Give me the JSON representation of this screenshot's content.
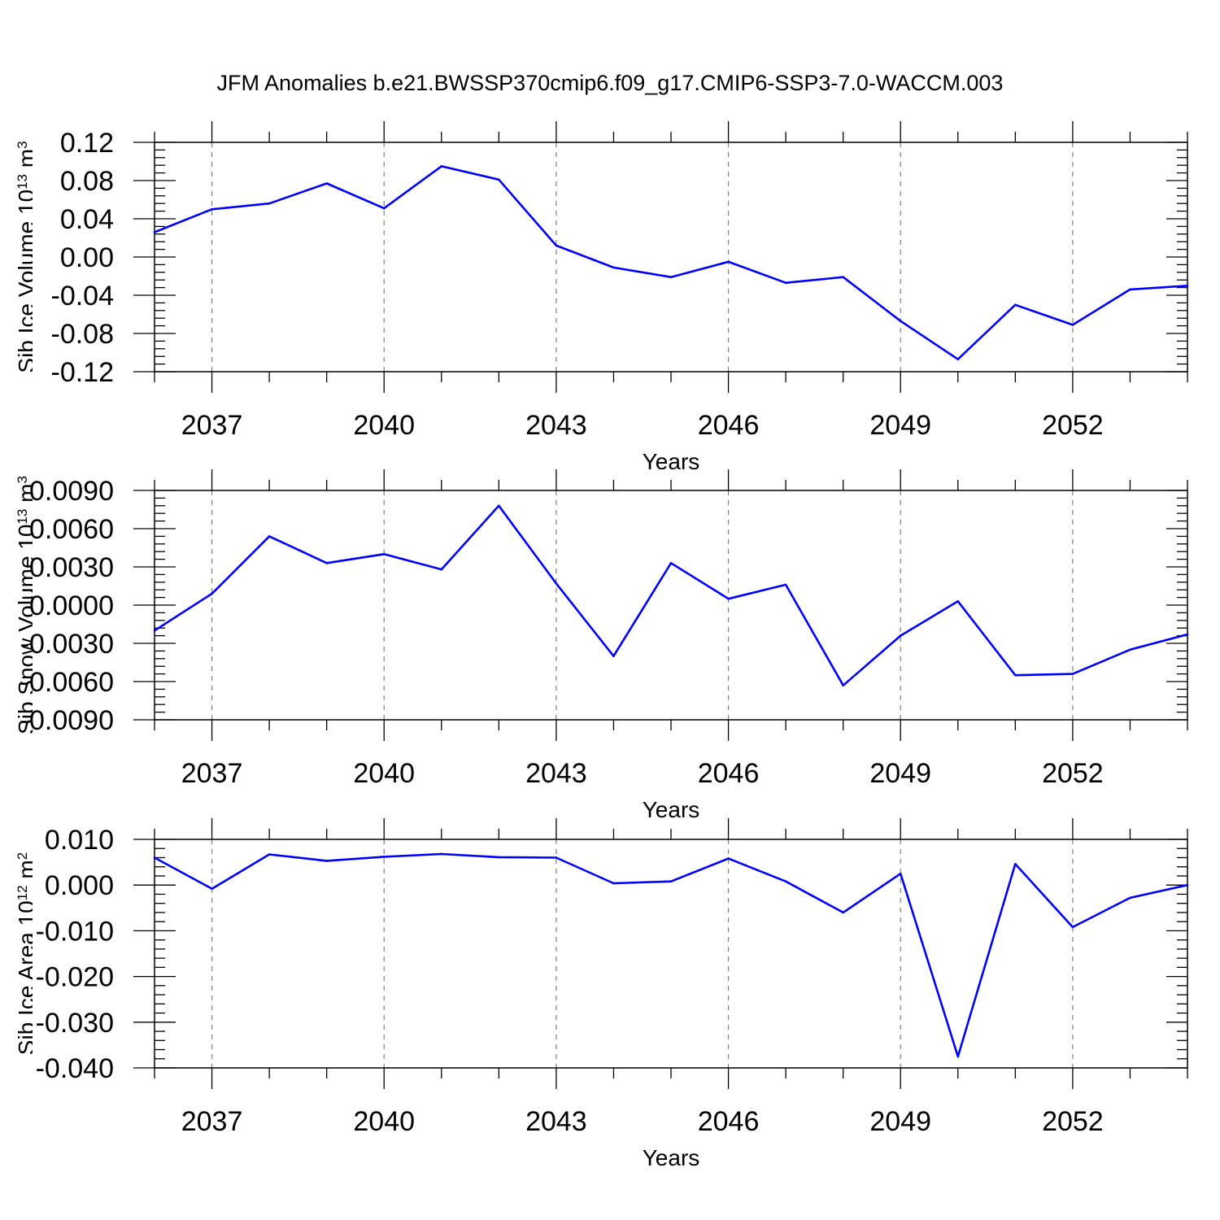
{
  "figure": {
    "title": "JFM Anomalies b.e21.BWSSP370cmip6.f09_g17.CMIP6-SSP3-7.0-WACCM.003",
    "line_color": "#0000ff",
    "grid_color": "#808080"
  },
  "chart_data": [
    {
      "type": "line",
      "xlabel": "Years",
      "ylabel": {
        "base": "Sib Ice Volume 10",
        "exp": "13",
        "unit": " m",
        "unit_exp": "3"
      },
      "xlim": [
        2036,
        2054
      ],
      "ylim": [
        -0.12,
        0.12
      ],
      "yticks": [
        -0.12,
        -0.08,
        -0.04,
        0.0,
        0.04,
        0.08,
        0.12
      ],
      "ytick_labels": [
        "-0.12",
        "-0.08",
        "-0.04",
        "0.00",
        "0.04",
        "0.08",
        "0.12"
      ],
      "xticks": [
        2037,
        2040,
        2043,
        2046,
        2049,
        2052
      ],
      "xtick_labels": [
        "2037",
        "2040",
        "2043",
        "2046",
        "2049",
        "2052"
      ],
      "grid": "vertical dashed at major x ticks",
      "series": [
        {
          "x": [
            2036,
            2037,
            2038,
            2039,
            2040,
            2041,
            2042,
            2043,
            2044,
            2045,
            2046,
            2047,
            2048,
            2049,
            2050,
            2051,
            2052,
            2053,
            2054
          ],
          "y": [
            0.026,
            0.05,
            0.056,
            0.077,
            0.051,
            0.095,
            0.081,
            0.012,
            -0.011,
            -0.021,
            -0.005,
            -0.027,
            -0.021,
            -0.067,
            -0.107,
            -0.05,
            -0.071,
            -0.034,
            -0.03
          ]
        }
      ]
    },
    {
      "type": "line",
      "xlabel": "Years",
      "ylabel": {
        "base": "Sib Snow Volume 10",
        "exp": "13",
        "unit": " m",
        "unit_exp": "3"
      },
      "xlim": [
        2036,
        2054
      ],
      "ylim": [
        -0.009,
        0.009
      ],
      "yticks": [
        -0.009,
        -0.006,
        -0.003,
        0.0,
        0.003,
        0.006,
        0.009
      ],
      "ytick_labels": [
        "-0.0090",
        "-0.0060",
        "-0.0030",
        "0.0000",
        "0.0030",
        "0.0060",
        "0.0090"
      ],
      "xticks": [
        2037,
        2040,
        2043,
        2046,
        2049,
        2052
      ],
      "xtick_labels": [
        "2037",
        "2040",
        "2043",
        "2046",
        "2049",
        "2052"
      ],
      "grid": "vertical dashed at major x ticks",
      "series": [
        {
          "x": [
            2036,
            2037,
            2038,
            2039,
            2040,
            2041,
            2042,
            2043,
            2044,
            2045,
            2046,
            2047,
            2048,
            2049,
            2050,
            2051,
            2052,
            2053,
            2054
          ],
          "y": [
            -0.002,
            0.0009,
            0.0054,
            0.0033,
            0.004,
            0.0028,
            0.0078,
            0.0017,
            -0.004,
            0.0033,
            0.0005,
            0.0016,
            -0.0063,
            -0.0024,
            0.0003,
            -0.0055,
            -0.0054,
            -0.0035,
            -0.0023
          ]
        }
      ]
    },
    {
      "type": "line",
      "xlabel": "Years",
      "ylabel": {
        "base": "Sib Ice Area 10",
        "exp": "12",
        "unit": " m",
        "unit_exp": "2"
      },
      "xlim": [
        2036,
        2054
      ],
      "ylim": [
        -0.04,
        0.01
      ],
      "yticks": [
        -0.04,
        -0.03,
        -0.02,
        -0.01,
        0.0,
        0.01
      ],
      "ytick_labels": [
        "-0.040",
        "-0.030",
        "-0.020",
        "-0.010",
        "0.000",
        "0.010"
      ],
      "xticks": [
        2037,
        2040,
        2043,
        2046,
        2049,
        2052
      ],
      "xtick_labels": [
        "2037",
        "2040",
        "2043",
        "2046",
        "2049",
        "2052"
      ],
      "grid": "vertical dashed at major x ticks",
      "series": [
        {
          "x": [
            2036,
            2037,
            2038,
            2039,
            2040,
            2041,
            2042,
            2043,
            2044,
            2045,
            2046,
            2047,
            2048,
            2049,
            2050,
            2051,
            2052,
            2053,
            2054
          ],
          "y": [
            0.006,
            -0.0008,
            0.0067,
            0.0053,
            0.0062,
            0.0068,
            0.0061,
            0.006,
            0.0004,
            0.0008,
            0.0058,
            0.0008,
            -0.006,
            0.0025,
            -0.0375,
            0.0046,
            -0.0092,
            -0.0028,
            0.0
          ]
        }
      ]
    }
  ]
}
